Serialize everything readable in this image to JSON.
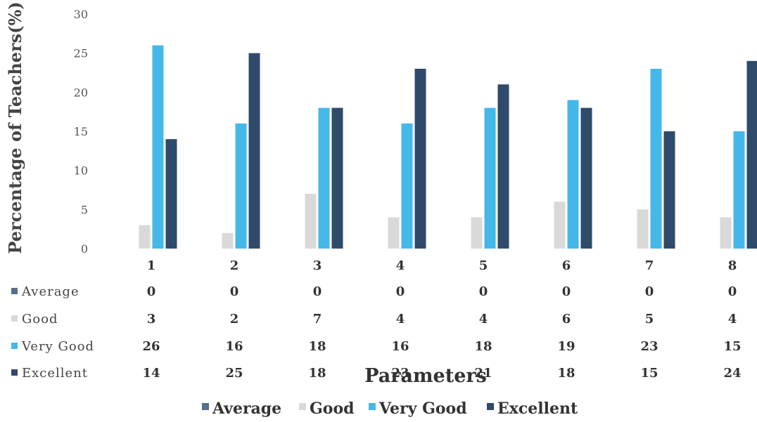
{
  "chart_data": {
    "type": "bar",
    "categories": [
      "1",
      "2",
      "3",
      "4",
      "5",
      "6",
      "7",
      "8"
    ],
    "series": [
      {
        "name": "Average",
        "values": [
          0,
          0,
          0,
          0,
          0,
          0,
          0,
          0
        ],
        "color": "#556f8c"
      },
      {
        "name": "Good",
        "values": [
          3,
          2,
          7,
          4,
          4,
          6,
          5,
          4
        ],
        "color": "#d9d9d9"
      },
      {
        "name": "Very Good",
        "values": [
          26,
          16,
          18,
          16,
          18,
          19,
          23,
          15
        ],
        "color": "#45b8ea"
      },
      {
        "name": "Excellent",
        "values": [
          14,
          25,
          18,
          23,
          21,
          18,
          15,
          24
        ],
        "color": "#2f4a6b"
      }
    ],
    "xlabel": "Parameters",
    "ylabel": "Percentage of Teachers(%)",
    "yticks": [
      0,
      5,
      10,
      15,
      20,
      25,
      30
    ],
    "ylim": [
      0,
      30
    ],
    "grid": false,
    "legend_position": "bottom",
    "data_table": true
  }
}
